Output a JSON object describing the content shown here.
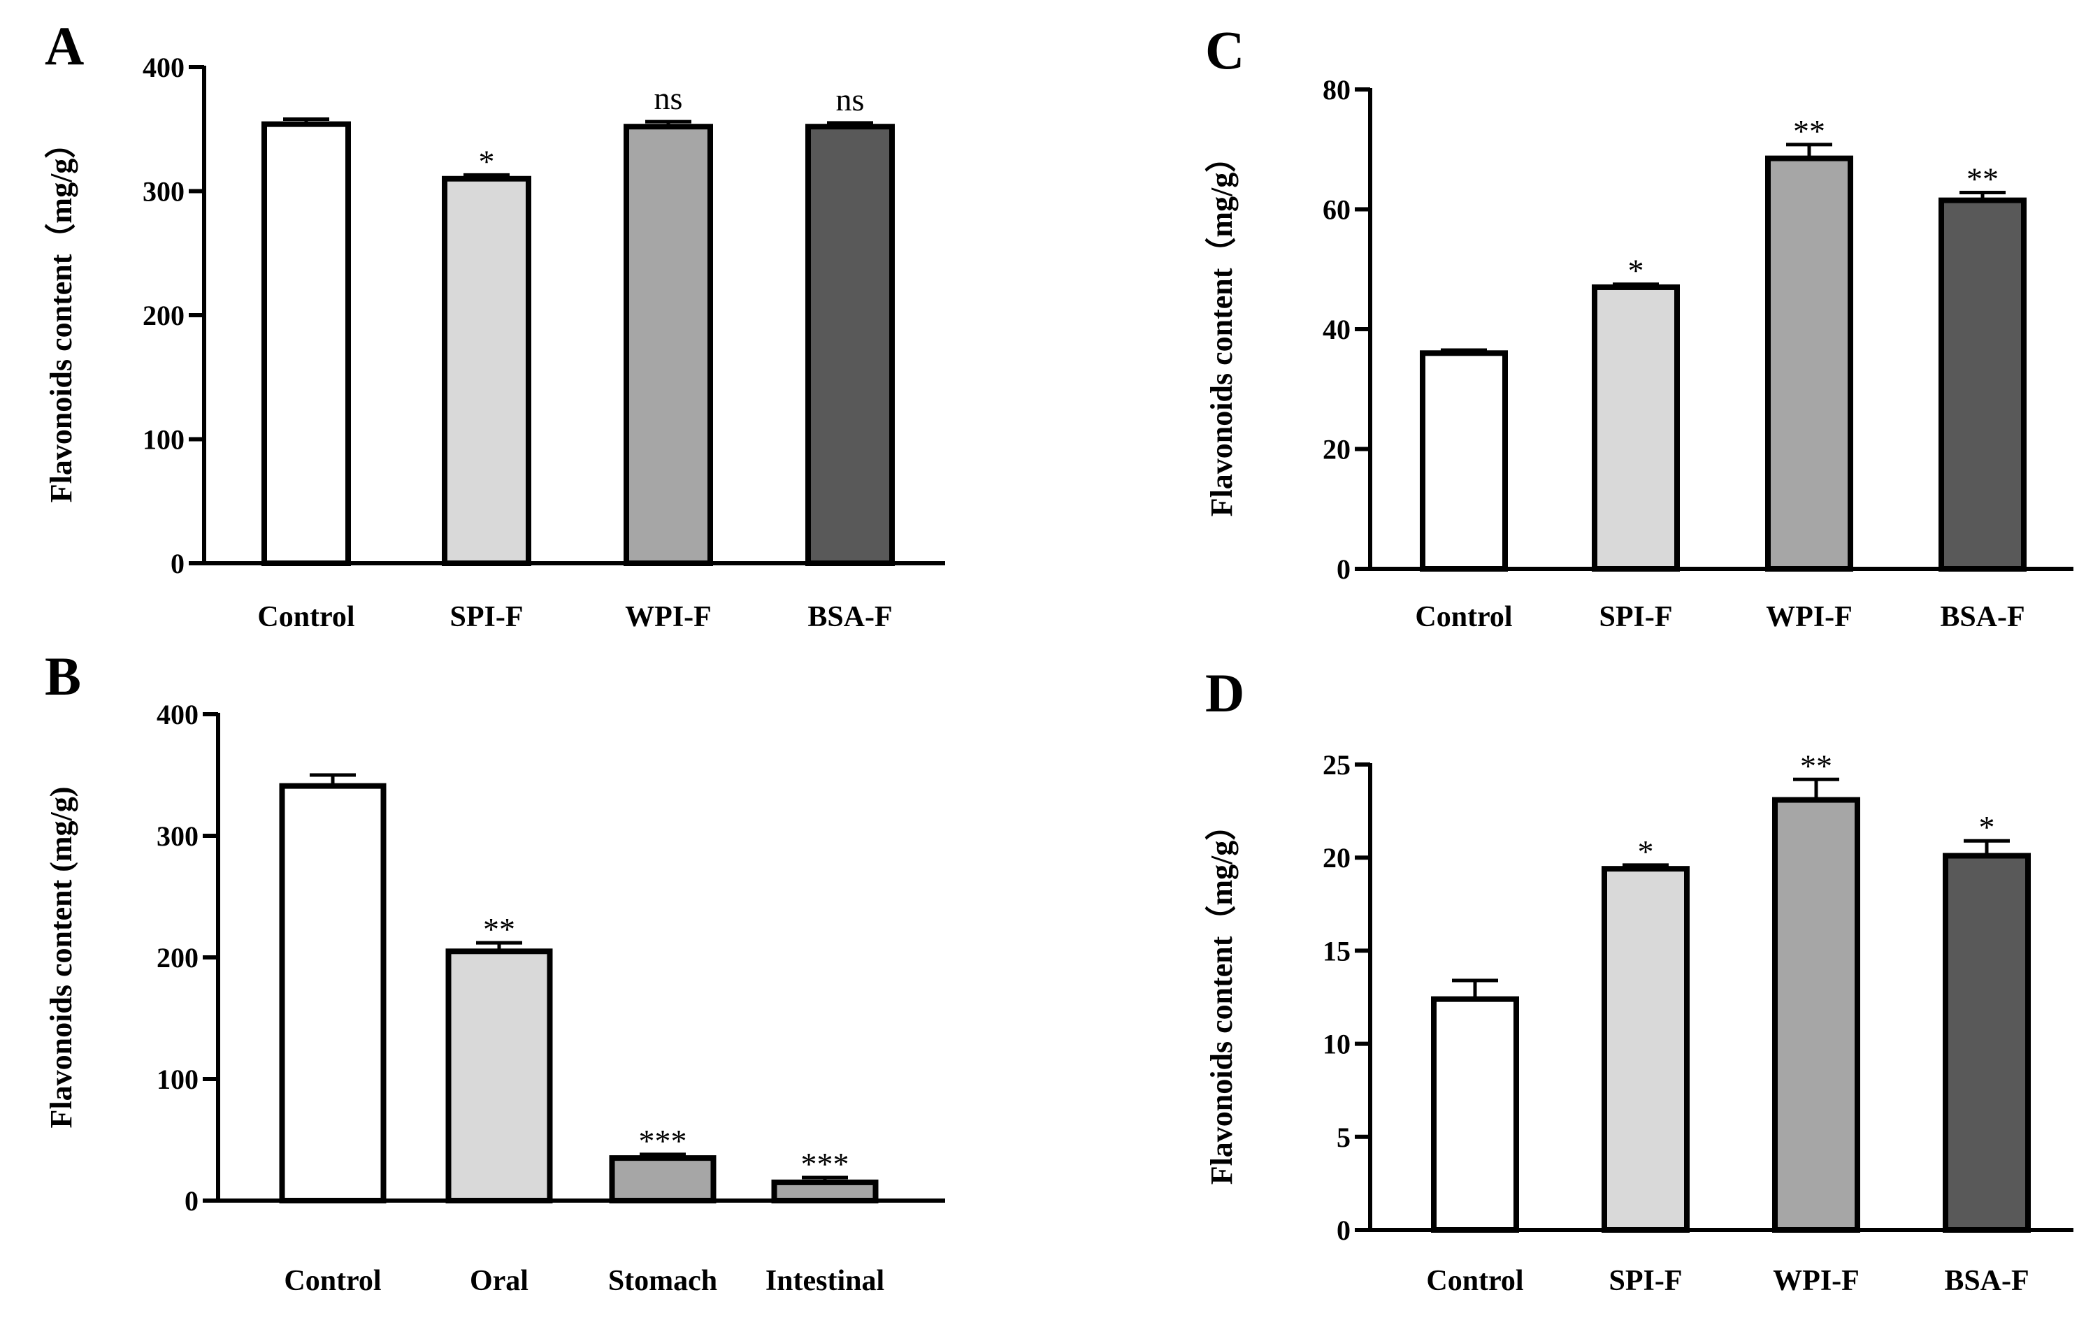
{
  "figure": {
    "panels": [
      "A",
      "B",
      "C",
      "D"
    ]
  },
  "chart_data": [
    {
      "panel": "A",
      "type": "bar",
      "categories": [
        "Control",
        "SPI-F",
        "WPI-F",
        "BSA-F"
      ],
      "values": [
        354,
        310,
        352,
        352
      ],
      "errors": [
        4,
        3,
        4,
        3
      ],
      "significance": [
        "",
        "*",
        "ns",
        "ns"
      ],
      "colors": [
        "#ffffff",
        "#d9d9d9",
        "#a6a6a6",
        "#595959"
      ],
      "ylabel": "Flavonoids content（mg/g）",
      "ylim": [
        0,
        400
      ],
      "yticks": [
        0,
        100,
        200,
        300,
        400
      ]
    },
    {
      "panel": "B",
      "type": "bar",
      "categories": [
        "Control",
        "Oral",
        "Stomach",
        "Intestinal"
      ],
      "values": [
        341,
        205,
        35,
        15
      ],
      "errors": [
        9,
        7,
        3,
        4
      ],
      "significance": [
        "",
        "**",
        "***",
        "***"
      ],
      "colors": [
        "#ffffff",
        "#d9d9d9",
        "#a6a6a6",
        "#a6a6a6"
      ],
      "ylabel": "Flavonoids content (mg/g)",
      "ylim": [
        0,
        400
      ],
      "yticks": [
        0,
        100,
        200,
        300,
        400
      ]
    },
    {
      "panel": "C",
      "type": "bar",
      "categories": [
        "Control",
        "SPI-F",
        "WPI-F",
        "BSA-F"
      ],
      "values": [
        36,
        47,
        68.5,
        61.5
      ],
      "errors": [
        0.5,
        0.5,
        2.3,
        1.3
      ],
      "significance": [
        "",
        "*",
        "**",
        "**"
      ],
      "colors": [
        "#ffffff",
        "#d9d9d9",
        "#a6a6a6",
        "#595959"
      ],
      "ylabel": "Flavonoids content（mg/g）",
      "ylim": [
        0,
        80
      ],
      "yticks": [
        0,
        20,
        40,
        60,
        80
      ]
    },
    {
      "panel": "D",
      "type": "bar",
      "categories": [
        "Control",
        "SPI-F",
        "WPI-F",
        "BSA-F"
      ],
      "values": [
        12.4,
        19.4,
        23.1,
        20.1
      ],
      "errors": [
        1.0,
        0.2,
        1.1,
        0.8
      ],
      "significance": [
        "",
        "*",
        "**",
        "*"
      ],
      "colors": [
        "#ffffff",
        "#d9d9d9",
        "#a6a6a6",
        "#595959"
      ],
      "ylabel": "Flavonoids content（mg/g）",
      "ylim": [
        0,
        25
      ],
      "yticks": [
        0,
        5,
        10,
        15,
        20,
        25
      ]
    }
  ]
}
